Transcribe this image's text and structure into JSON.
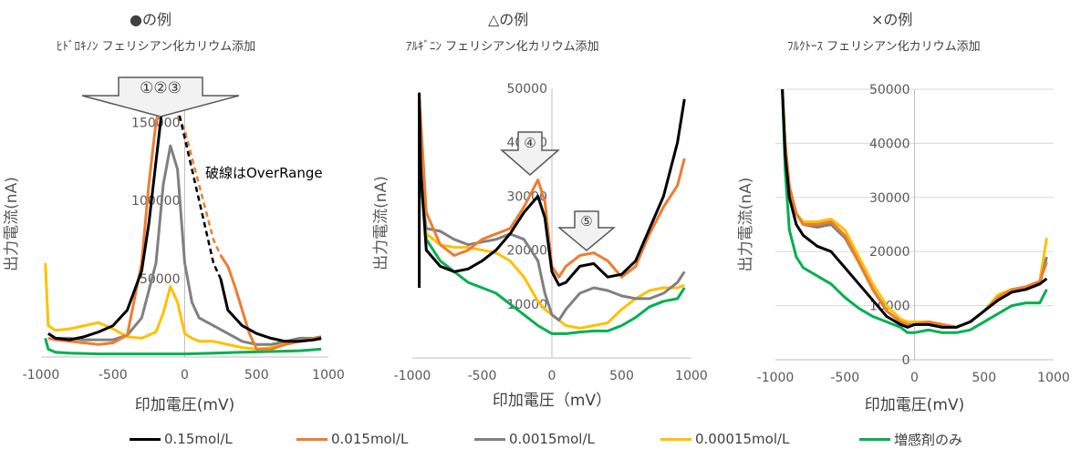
{
  "colors": {
    "black": "#000000",
    "orange": "#ED7D31",
    "gray": "#808080",
    "yellow": "#FFC000",
    "green": "#00B050",
    "grid": "#D9D9D9",
    "axis": "#BFBFBF"
  },
  "panels": [
    {
      "title": "●の例",
      "subtitle": "ﾋﾄﾞﾛｷﾉﾝ フェリシアン化カリウム添加",
      "ylabel": "出力電流(nA)",
      "xlabel": "印加電圧(mV)",
      "note": "破線はOverRange",
      "arrow_label": "①②③"
    },
    {
      "title": "△の例",
      "subtitle": "ｱﾙｷﾞﾆﾝ フェリシアン化カリウム添加",
      "ylabel": "出力電流(nA)",
      "xlabel": "印加電圧（mV）",
      "arrow_label": "④",
      "arrow2_label": "⑤"
    },
    {
      "title": "×の例",
      "subtitle": "ﾌﾙｸﾄｰｽ フェリシアン化カリウム添加",
      "ylabel": "出力電流(nA)",
      "xlabel": "印加電圧(mV)"
    }
  ],
  "legend": [
    {
      "label": "0.15mol/L",
      "color": "#000000"
    },
    {
      "label": "0.015mol/L",
      "color": "#ED7D31"
    },
    {
      "label": "0.0015mol/L",
      "color": "#808080"
    },
    {
      "label": "0.00015mol/L",
      "color": "#FFC000"
    },
    {
      "label": "増感剤のみ",
      "color": "#00B050"
    }
  ],
  "chart_data": [
    {
      "type": "line",
      "title": "●の例",
      "subtitle": "ﾋﾄﾞﾛｷﾉﾝ フェリシアン化カリウム添加",
      "xlabel": "印加電圧(mV)",
      "ylabel": "出力電流(nA)",
      "xlim": [
        -1000,
        1000
      ],
      "ylim": [
        0,
        170000
      ],
      "xticks": [
        -1000,
        -500,
        0,
        500,
        1000
      ],
      "yticks": [
        50000,
        100000,
        150000
      ],
      "grid": false,
      "series": [
        {
          "name": "0.15mol/L",
          "x": [
            -950,
            -900,
            -800,
            -700,
            -600,
            -500,
            -400,
            -300,
            -250,
            -200,
            -150,
            -100,
            -50
          ],
          "y": [
            15000,
            12000,
            11000,
            13000,
            16000,
            20000,
            30000,
            55000,
            85000,
            125000,
            165000,
            170000,
            160000
          ],
          "overrange": {
            "x": [
              -50,
              0,
              100,
              200,
              250
            ],
            "y": [
              160000,
              140000,
              100000,
              60000,
              50000
            ]
          },
          "x2": [
            250,
            300,
            400,
            500,
            600,
            700,
            800,
            900,
            950
          ],
          "y2": [
            50000,
            30000,
            20000,
            15000,
            12000,
            10000,
            10000,
            11000,
            12000
          ]
        },
        {
          "name": "0.015mol/L",
          "x": [
            -950,
            -900,
            -800,
            -700,
            -600,
            -500,
            -400,
            -300,
            -250,
            -200,
            -150,
            -100
          ],
          "y": [
            12000,
            11000,
            10000,
            9000,
            8000,
            9000,
            14000,
            60000,
            110000,
            150000,
            170000,
            165000
          ],
          "overrange": {
            "x": [
              -100,
              0,
              100,
              200,
              250
            ],
            "y": [
              165000,
              145000,
              110000,
              75000,
              65000
            ]
          },
          "x2": [
            250,
            300,
            350,
            400,
            450,
            500,
            600,
            700,
            800,
            900,
            950
          ],
          "y2": [
            65000,
            58000,
            45000,
            30000,
            15000,
            5000,
            5000,
            8000,
            10000,
            12000,
            12000
          ]
        },
        {
          "name": "0.0015mol/L",
          "x": [
            -950,
            -900,
            -800,
            -700,
            -600,
            -500,
            -400,
            -300,
            -200,
            -150,
            -100,
            -50,
            0,
            50,
            100,
            200,
            300,
            400,
            500,
            600,
            700,
            800,
            900,
            950
          ],
          "y": [
            15000,
            12000,
            12000,
            11000,
            11000,
            11000,
            14000,
            25000,
            60000,
            110000,
            135000,
            120000,
            60000,
            35000,
            25000,
            20000,
            15000,
            10000,
            8000,
            8000,
            10000,
            12000,
            12000,
            13000
          ]
        },
        {
          "name": "0.00015mol/L",
          "x": [
            -970,
            -950,
            -900,
            -800,
            -700,
            -600,
            -500,
            -400,
            -300,
            -200,
            -150,
            -100,
            -50,
            0,
            50,
            100,
            200,
            300,
            400,
            500,
            600,
            700,
            800,
            900,
            950
          ],
          "y": [
            60000,
            20000,
            17000,
            18000,
            20000,
            22000,
            18000,
            13000,
            12000,
            16000,
            28000,
            45000,
            35000,
            15000,
            12000,
            10000,
            10000,
            8000,
            6000,
            5000,
            6000,
            9000,
            11000,
            12000,
            11000
          ]
        },
        {
          "name": "増感剤のみ",
          "x": [
            -970,
            -950,
            -900,
            -800,
            -600,
            -400,
            -200,
            0,
            200,
            400,
            600,
            800,
            950
          ],
          "y": [
            12000,
            5000,
            3000,
            2500,
            2000,
            2000,
            2000,
            2000,
            2500,
            3000,
            3500,
            4000,
            5000
          ]
        }
      ]
    },
    {
      "type": "line",
      "title": "△の例",
      "subtitle": "ｱﾙｷﾞﾆﾝ フェリシアン化カリウム添加",
      "xlabel": "印加電圧（mV）",
      "ylabel": "出力電流(nA)",
      "xlim": [
        -1000,
        1000
      ],
      "ylim": [
        0,
        50000
      ],
      "xticks": [
        -1000,
        -500,
        0,
        500,
        1000
      ],
      "yticks": [
        10000,
        20000,
        30000,
        40000,
        50000
      ],
      "grid": false,
      "series": [
        {
          "name": "0.15mol/L",
          "x": [
            -950,
            -950,
            -940,
            -900,
            -800,
            -700,
            -600,
            -500,
            -400,
            -300,
            -200,
            -100,
            -50,
            0,
            50,
            100,
            200,
            300,
            400,
            500,
            600,
            700,
            800,
            900,
            950
          ],
          "y": [
            13000,
            49000,
            35000,
            20000,
            17000,
            16000,
            16500,
            18000,
            20000,
            23000,
            27000,
            30000,
            26000,
            16000,
            13500,
            14000,
            17000,
            17500,
            15000,
            15500,
            18000,
            24000,
            30000,
            40000,
            48000
          ]
        },
        {
          "name": "0.015mol/L",
          "x": [
            -950,
            -930,
            -900,
            -800,
            -700,
            -600,
            -500,
            -400,
            -300,
            -200,
            -100,
            -50,
            0,
            50,
            100,
            200,
            300,
            400,
            500,
            600,
            700,
            800,
            900,
            950
          ],
          "y": [
            48000,
            40000,
            27000,
            21000,
            19000,
            20000,
            22000,
            23000,
            24000,
            28000,
            33000,
            29000,
            17000,
            15000,
            17000,
            19000,
            19500,
            18000,
            15000,
            17000,
            23000,
            28000,
            32000,
            37000
          ]
        },
        {
          "name": "0.0015mol/L",
          "x": [
            -950,
            -930,
            -900,
            -800,
            -700,
            -600,
            -500,
            -400,
            -300,
            -200,
            -100,
            -50,
            0,
            50,
            100,
            200,
            300,
            400,
            500,
            600,
            700,
            800,
            900,
            950
          ],
          "y": [
            48000,
            30000,
            24000,
            23500,
            22000,
            21000,
            21500,
            22000,
            23000,
            22000,
            18000,
            12000,
            8000,
            7000,
            9000,
            12000,
            13000,
            12500,
            11500,
            11000,
            11000,
            12000,
            14000,
            16000
          ]
        },
        {
          "name": "0.00015mol/L",
          "x": [
            -950,
            -930,
            -900,
            -800,
            -700,
            -600,
            -500,
            -400,
            -300,
            -200,
            -100,
            -50,
            0,
            50,
            100,
            200,
            300,
            400,
            500,
            600,
            700,
            800,
            900,
            950
          ],
          "y": [
            48000,
            30000,
            23000,
            21000,
            20500,
            20500,
            20000,
            19500,
            18000,
            15000,
            10500,
            9000,
            8000,
            7000,
            6000,
            5500,
            6000,
            6500,
            9000,
            11000,
            12500,
            13000,
            13000,
            13500
          ]
        },
        {
          "name": "増感剤のみ",
          "x": [
            -950,
            -930,
            -900,
            -800,
            -700,
            -600,
            -500,
            -400,
            -300,
            -200,
            -100,
            0,
            100,
            200,
            300,
            400,
            500,
            600,
            700,
            800,
            900,
            950
          ],
          "y": [
            48000,
            30000,
            22000,
            18000,
            16000,
            14000,
            13000,
            12000,
            10000,
            8000,
            6000,
            4500,
            4500,
            4800,
            5000,
            5000,
            6000,
            7500,
            9500,
            10500,
            11000,
            13000
          ]
        }
      ]
    },
    {
      "type": "line",
      "title": "×の例",
      "subtitle": "ﾌﾙｸﾄｰｽ フェリシアン化カリウム添加",
      "xlabel": "印加電圧(mV)",
      "ylabel": "出力電流(nA)",
      "xlim": [
        -1000,
        1000
      ],
      "ylim": [
        0,
        50000
      ],
      "xticks": [
        -1000,
        -500,
        0,
        500,
        1000
      ],
      "yticks": [
        0,
        10000,
        20000,
        30000,
        40000,
        50000
      ],
      "grid": true,
      "series": [
        {
          "name": "0.15mol/L",
          "x": [
            -950,
            -930,
            -900,
            -850,
            -800,
            -700,
            -600,
            -500,
            -400,
            -300,
            -200,
            -100,
            -50,
            0,
            100,
            200,
            300,
            400,
            500,
            600,
            700,
            800,
            900,
            950
          ],
          "y": [
            50000,
            38000,
            30000,
            25000,
            23000,
            21000,
            20000,
            17000,
            14000,
            11000,
            8000,
            6500,
            6000,
            6500,
            6500,
            6000,
            6000,
            7000,
            9000,
            11000,
            12500,
            13000,
            14000,
            15000
          ]
        },
        {
          "name": "0.015mol/L",
          "x": [
            -950,
            -930,
            -900,
            -850,
            -800,
            -700,
            -600,
            -500,
            -400,
            -300,
            -200,
            -100,
            -50,
            0,
            100,
            200,
            300,
            400,
            500,
            600,
            700,
            800,
            900,
            950
          ],
          "y": [
            50000,
            40000,
            32000,
            27000,
            25000,
            25000,
            25500,
            23000,
            18000,
            13000,
            9000,
            7000,
            6500,
            6500,
            7000,
            6500,
            6000,
            7000,
            9000,
            11500,
            13000,
            13500,
            14500,
            18000
          ]
        },
        {
          "name": "0.0015mol/L",
          "x": [
            -950,
            -930,
            -900,
            -850,
            -800,
            -700,
            -600,
            -500,
            -400,
            -300,
            -200,
            -100,
            -50,
            0,
            100,
            200,
            300,
            400,
            500,
            600,
            700,
            800,
            900,
            950
          ],
          "y": [
            50000,
            40000,
            32000,
            27000,
            25000,
            24500,
            25000,
            22500,
            18000,
            13000,
            9000,
            7000,
            6500,
            6500,
            7000,
            6500,
            6000,
            7000,
            9000,
            11500,
            13000,
            13000,
            14000,
            19000
          ]
        },
        {
          "name": "0.00015mol/L",
          "x": [
            -950,
            -930,
            -900,
            -850,
            -800,
            -700,
            -600,
            -500,
            -400,
            -300,
            -200,
            -100,
            -50,
            0,
            100,
            200,
            300,
            400,
            500,
            600,
            700,
            800,
            900,
            950
          ],
          "y": [
            50000,
            40000,
            32000,
            27000,
            25500,
            25500,
            26000,
            24000,
            19000,
            14000,
            10000,
            7500,
            7000,
            7000,
            7000,
            6500,
            6000,
            7000,
            9000,
            12000,
            13000,
            13000,
            14500,
            22500
          ]
        },
        {
          "name": "増感剤のみ",
          "x": [
            -950,
            -930,
            -900,
            -850,
            -800,
            -700,
            -600,
            -500,
            -400,
            -300,
            -200,
            -100,
            -50,
            0,
            100,
            200,
            300,
            400,
            500,
            600,
            700,
            800,
            900,
            950
          ],
          "y": [
            50000,
            35000,
            24000,
            19000,
            17000,
            15500,
            14000,
            11500,
            9500,
            8000,
            7000,
            6000,
            5000,
            5000,
            5500,
            5000,
            5000,
            5500,
            7000,
            8500,
            10000,
            10500,
            10500,
            13000
          ]
        }
      ]
    }
  ]
}
